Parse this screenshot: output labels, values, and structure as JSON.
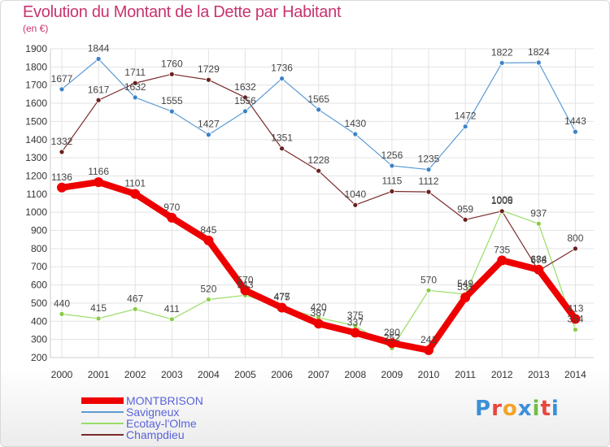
{
  "header": {
    "title": "Evolution du Montant de la Dette par Habitant",
    "subtitle": "(en €)"
  },
  "logo": {
    "text": "Proxiti",
    "colors": [
      "#3d8fd8",
      "#e8463c",
      "#f2a428",
      "#3d8fd8",
      "#6fbe44",
      "#e8463c",
      "#3d8fd8"
    ]
  },
  "chart_data": {
    "type": "line",
    "title": "Evolution du Montant de la Dette par Habitant",
    "subtitle": "(en €)",
    "x": [
      "2000",
      "2001",
      "2002",
      "2003",
      "2004",
      "2005",
      "2006",
      "2007",
      "2008",
      "2009",
      "2010",
      "2011",
      "2012",
      "2013",
      "2014"
    ],
    "ylim": [
      200,
      1900
    ],
    "yticks": [
      200,
      300,
      400,
      500,
      600,
      700,
      800,
      900,
      1000,
      1100,
      1200,
      1300,
      1400,
      1500,
      1600,
      1700,
      1800,
      1900
    ],
    "grid": true,
    "legend_position": "bottom-left",
    "series": [
      {
        "name": "MONTBRISON",
        "color": "#ee0000",
        "values": [
          1136,
          1166,
          1101,
          970,
          845,
          570,
          475,
          387,
          337,
          280,
          241,
          531,
          735,
          684,
          413
        ],
        "labels": [
          "1136",
          "1166",
          "1101",
          "970",
          "845",
          "570",
          "475",
          "387",
          "337",
          "280",
          "241",
          "531",
          "735",
          "684",
          "413"
        ]
      },
      {
        "name": "Savigneux",
        "color": "#5b9bd5",
        "values": [
          1677,
          1844,
          1632,
          1555,
          1427,
          1556,
          1736,
          1565,
          1430,
          1256,
          1235,
          1472,
          1822,
          1824,
          1443
        ],
        "labels": [
          "1677",
          "1844",
          "1632",
          "1555",
          "1427",
          "1556",
          "1736",
          "1565",
          "1430",
          "1256",
          "1235",
          "1472",
          "1822",
          "1824",
          "1443"
        ]
      },
      {
        "name": "Ecotay-l'Olme",
        "color": "#99dd66",
        "values": [
          440,
          415,
          467,
          411,
          520,
          543,
          477,
          420,
          375,
          252,
          570,
          549,
          1009,
          937,
          354
        ],
        "labels": [
          "440",
          "415",
          "467",
          "411",
          "520",
          "543",
          "477",
          "420",
          "375",
          "252",
          "570",
          "549",
          "1009",
          "937",
          "354"
        ]
      },
      {
        "name": "Champdieu",
        "color": "#7b2a2a",
        "values": [
          1332,
          1617,
          1711,
          1760,
          1729,
          1632,
          1351,
          1228,
          1040,
          1115,
          1112,
          959,
          1006,
          678,
          800
        ],
        "labels": [
          "1332",
          "1617",
          "1711",
          "1760",
          "1729",
          "1632",
          "1351",
          "1228",
          "1040",
          "1115",
          "1112",
          "959",
          "1006",
          "678",
          "800"
        ]
      }
    ]
  }
}
